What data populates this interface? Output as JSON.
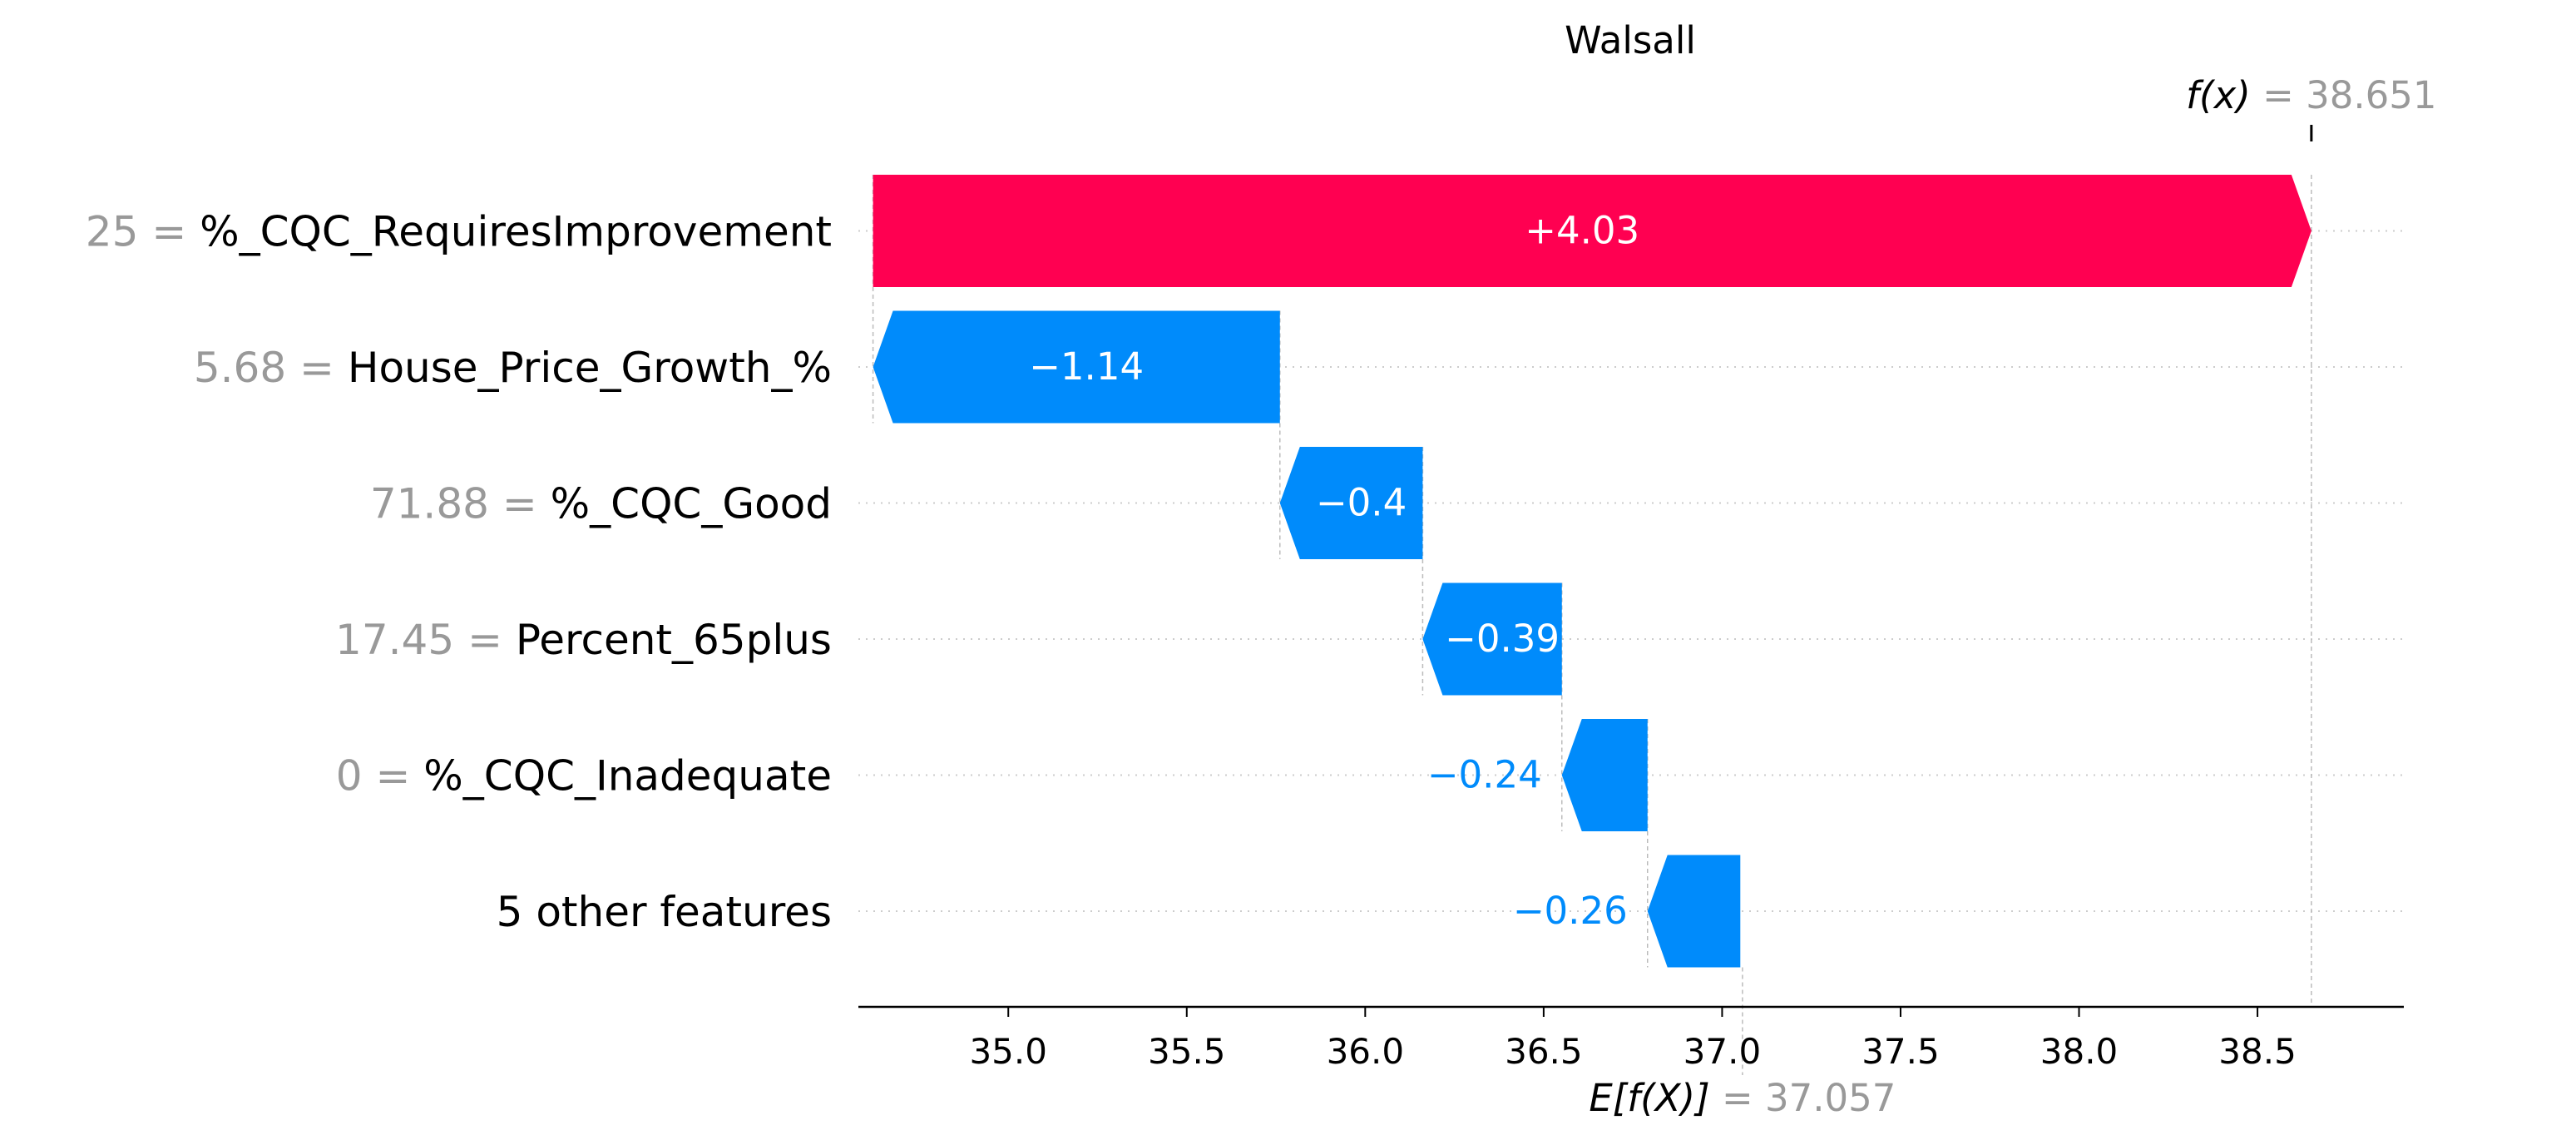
{
  "chart_data": {
    "type": "waterfall",
    "title": "Walsall",
    "base_value": 37.057,
    "base_label": "E[f(X)]",
    "base_value_text": "37.057",
    "output_value": 38.651,
    "output_label": "f(x)",
    "output_value_text": "38.651",
    "xlim": [
      34.58,
      38.91
    ],
    "xticks": [
      35.0,
      35.5,
      36.0,
      36.5,
      37.0,
      37.5,
      38.0,
      38.5
    ],
    "xtick_labels": [
      "35.0",
      "35.5",
      "36.0",
      "36.5",
      "37.0",
      "37.5",
      "38.0",
      "38.5"
    ],
    "features": [
      {
        "value": "25",
        "name": "%_CQC_RequiresImprovement",
        "shap": 4.03,
        "label": "+4.03"
      },
      {
        "value": "5.68",
        "name": "House_Price_Growth_%",
        "shap": -1.14,
        "label": "−1.14"
      },
      {
        "value": "71.88",
        "name": "%_CQC_Good",
        "shap": -0.4,
        "label": "−0.4"
      },
      {
        "value": "17.45",
        "name": "Percent_65plus",
        "shap": -0.39,
        "label": "−0.39"
      },
      {
        "value": "0",
        "name": "%_CQC_Inadequate",
        "shap": -0.24,
        "label": "−0.24"
      },
      {
        "value": "",
        "name": "5 other features",
        "shap": -0.26,
        "label": "−0.26"
      }
    ],
    "colors": {
      "positive": "#ff0051",
      "negative": "#008bfb",
      "value_gray": "#999999",
      "guide": "#bbbbbb",
      "grid": "#cccccc"
    }
  }
}
